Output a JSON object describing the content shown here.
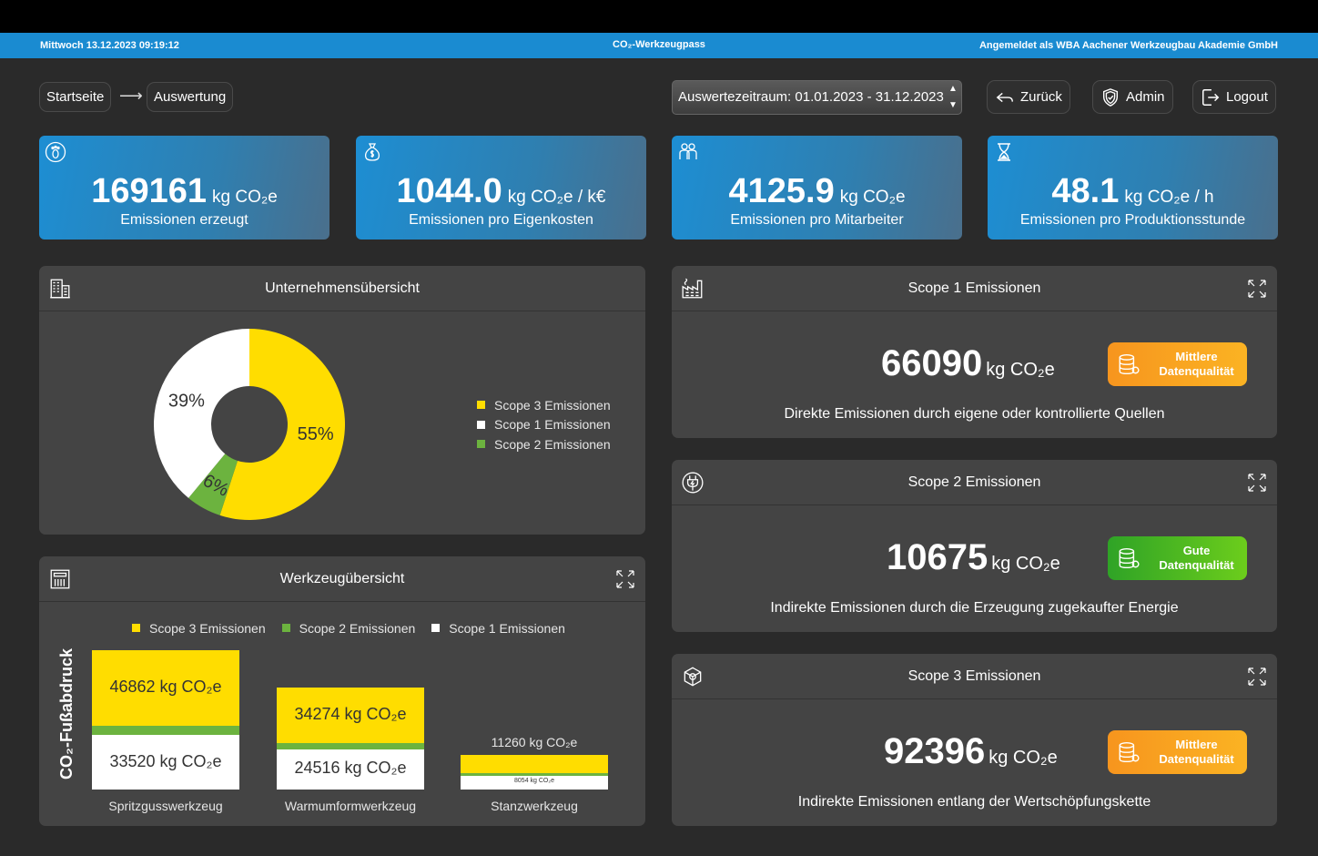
{
  "status": {
    "datetime": "Mittwoch 13.12.2023 09:19:12",
    "title": "CO₂-Werkzeugpass",
    "login": "Angemeldet als WBA Aachener Werkzeugbau Akademie GmbH"
  },
  "nav": {
    "breadcrumb_home": "Startseite",
    "breadcrumb_current": "Auswertung",
    "period": "Auswertezeitraum: 01.01.2023 - 31.12.2023",
    "back": "Zurück",
    "admin": "Admin",
    "logout": "Logout"
  },
  "kpis": [
    {
      "value": "169161",
      "unit": "kg CO₂e",
      "label": "Emissionen erzeugt",
      "icon": "footprint-icon"
    },
    {
      "value": "1044.0",
      "unit": "kg CO₂e / k€",
      "label": "Emissionen pro Eigenkosten",
      "icon": "money-bag-icon"
    },
    {
      "value": "4125.9",
      "unit": "kg CO₂e",
      "label": "Emissionen pro Mitarbeiter",
      "icon": "employees-icon"
    },
    {
      "value": "48.1",
      "unit": "kg CO₂e / h",
      "label": "Emissionen pro Produktionsstunde",
      "icon": "hourglass-icon"
    }
  ],
  "company": {
    "title": "Unternehmensübersicht",
    "slices": [
      {
        "label": "55%",
        "value": 55,
        "color": "#ffdd00"
      },
      {
        "label": "6%",
        "value": 6,
        "color": "#6cb33f"
      },
      {
        "label": "39%",
        "value": 39,
        "color": "#ffffff"
      }
    ],
    "legend": [
      {
        "name": "Scope 3 Emissionen",
        "color": "#ffdd00"
      },
      {
        "name": "Scope 1 Emissionen",
        "color": "#ffffff"
      },
      {
        "name": "Scope 2 Emissionen",
        "color": "#6cb33f"
      }
    ]
  },
  "tools": {
    "title": "Werkzeugübersicht",
    "ylabel": "CO₂-Fußabdruck",
    "legend": [
      {
        "name": "Scope 3 Emissionen",
        "color": "#ffdd00"
      },
      {
        "name": "Scope 2 Emissionen",
        "color": "#6cb33f"
      },
      {
        "name": "Scope 1 Emissionen",
        "color": "#ffffff"
      }
    ],
    "bars": [
      {
        "name": "Spritzgusswerkzeug",
        "scope3": "46862 kg CO₂e",
        "scope1": "33520 kg CO₂e"
      },
      {
        "name": "Warmumformwerkzeug",
        "scope3": "34274 kg CO₂e",
        "scope1": "24516 kg CO₂e"
      },
      {
        "name": "Stanzwerkzeug",
        "scope3": "11260 kg CO₂e",
        "scope1": "8054 kg CO₂e"
      }
    ]
  },
  "scope1": {
    "title": "Scope 1 Emissionen",
    "value": "66090",
    "unit": "kg CO₂e",
    "quality": "Mittlere Datenqualität",
    "description": "Direkte Emissionen durch eigene oder kontrollierte Quellen"
  },
  "scope2": {
    "title": "Scope 2 Emissionen",
    "value": "10675",
    "unit": "kg CO₂e",
    "quality": "Gute Datenqualität",
    "description": "Indirekte Emissionen durch die Erzeugung zugekaufter Energie"
  },
  "scope3": {
    "title": "Scope 3 Emissionen",
    "value": "92396",
    "unit": "kg CO₂e",
    "quality": "Mittlere Datenqualität",
    "description": "Indirekte Emissionen entlang der Wertschöpfungskette"
  }
}
